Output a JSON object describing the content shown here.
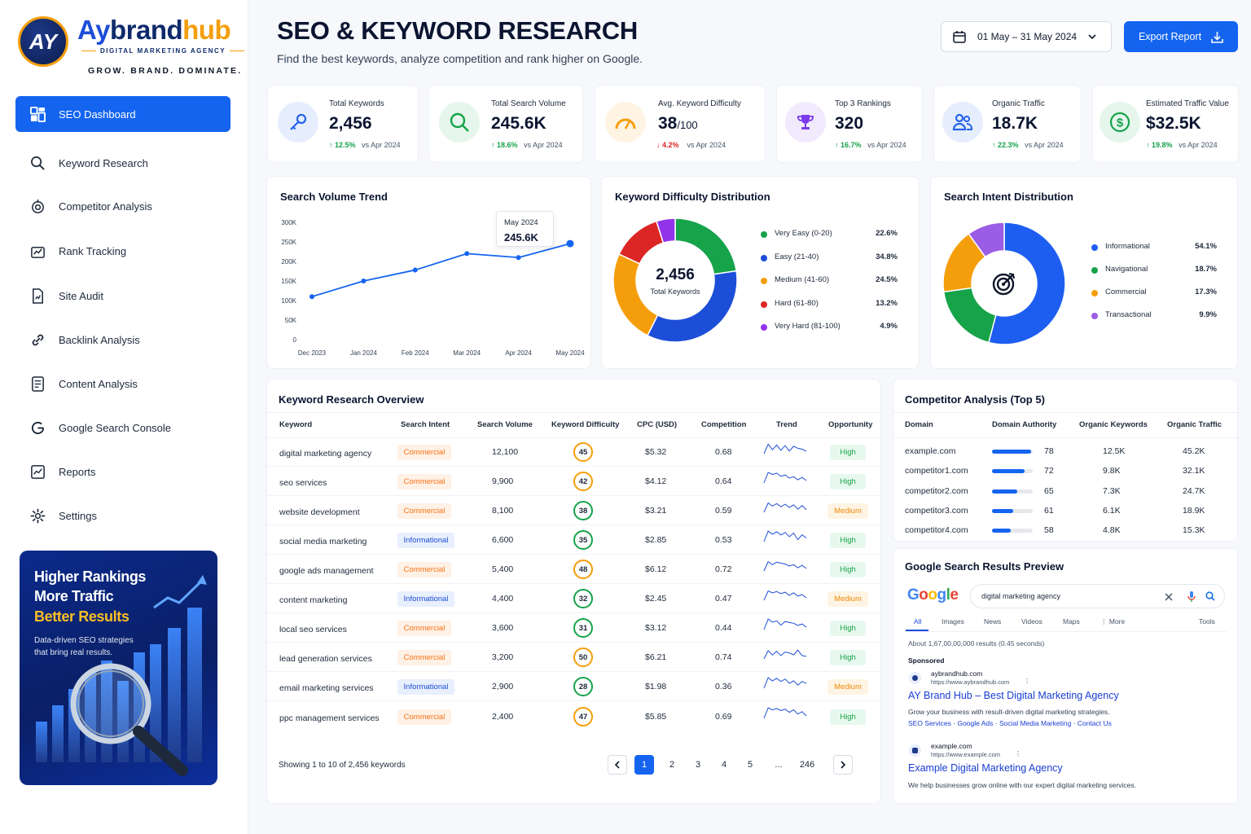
{
  "brand": {
    "initials": "AY",
    "name_part1": "Ay",
    "name_part2": "brand",
    "name_part3": "hub",
    "subtitle": "DIGITAL MARKETING AGENCY",
    "tagline": "GROW. BRAND. DOMINATE."
  },
  "sidebar": {
    "items": [
      {
        "label": "SEO Dashboard",
        "icon": "dashboard-icon"
      },
      {
        "label": "Keyword Research",
        "icon": "search-icon"
      },
      {
        "label": "Competitor Analysis",
        "icon": "target-icon"
      },
      {
        "label": "Rank Tracking",
        "icon": "rank-chart-icon"
      },
      {
        "label": "Site Audit",
        "icon": "audit-doc-icon"
      },
      {
        "label": "Backlink Analysis",
        "icon": "link-icon"
      },
      {
        "label": "Content Analysis",
        "icon": "document-icon"
      },
      {
        "label": "Google Search Console",
        "icon": "google-icon"
      },
      {
        "label": "Reports",
        "icon": "report-icon"
      },
      {
        "label": "Settings",
        "icon": "gear-icon"
      }
    ]
  },
  "promo": {
    "line1": "Higher Rankings",
    "line2": "More Traffic",
    "line3": "Better Results",
    "description": "Data-driven SEO strategies that bring real results."
  },
  "header": {
    "title": "SEO & KEYWORD RESEARCH",
    "subtitle": "Find the best keywords, analyze competition and rank higher on Google.",
    "date_range": "01 May – 31 May 2024",
    "export_label": "Export Report"
  },
  "kpis": [
    {
      "label": "Total Keywords",
      "value": "2,456",
      "suffix": "",
      "delta": "12.5%",
      "direction": "up",
      "compare": "vs Apr 2024",
      "icon": "key-icon",
      "color": "#2563eb"
    },
    {
      "label": "Total Search Volume",
      "value": "245.6K",
      "suffix": "",
      "delta": "18.6%",
      "direction": "up",
      "compare": "vs Apr 2024",
      "icon": "search-icon",
      "color": "#16a34a"
    },
    {
      "label": "Avg. Keyword Difficulty",
      "value": "38",
      "suffix": "/100",
      "delta": "4.2%",
      "direction": "down",
      "compare": "vs Apr 2024",
      "icon": "gauge-icon",
      "color": "#f59e0b"
    },
    {
      "label": "Top 3 Rankings",
      "value": "320",
      "suffix": "",
      "delta": "16.7%",
      "direction": "up",
      "compare": "vs Apr 2024",
      "icon": "trophy-icon",
      "color": "#7c3aed"
    },
    {
      "label": "Organic Traffic",
      "value": "18.7K",
      "suffix": "",
      "delta": "22.3%",
      "direction": "up",
      "compare": "vs Apr 2024",
      "icon": "users-icon",
      "color": "#2563eb"
    },
    {
      "label": "Estimated Traffic Value",
      "value": "$32.5K",
      "suffix": "",
      "delta": "19.8%",
      "direction": "up",
      "compare": "vs Apr 2024",
      "icon": "dollar-icon",
      "color": "#16a34a"
    }
  ],
  "chart_data": [
    {
      "type": "line",
      "title": "Search Volume Trend",
      "categories": [
        "Dec 2023",
        "Jan 2024",
        "Feb 2024",
        "Mar 2024",
        "Apr 2024",
        "May 2024"
      ],
      "series": [
        {
          "values": [
            110000,
            150000,
            178000,
            220000,
            210000,
            245600
          ]
        }
      ],
      "y_ticks": [
        "0",
        "50K",
        "100K",
        "150K",
        "200K",
        "250K",
        "300K"
      ],
      "ylim": [
        0,
        300000
      ],
      "color": "#1464f0",
      "tooltip": {
        "label": "May 2024",
        "value": "245.6K"
      }
    },
    {
      "type": "pie",
      "title": "Keyword Difficulty Distribution",
      "center_value": "2,456",
      "center_label": "Total Keywords",
      "slices": [
        {
          "label": "Very Easy (0-20)",
          "value": 22.6,
          "display": "22.6%",
          "color": "#16a34a"
        },
        {
          "label": "Easy (21-40)",
          "value": 34.8,
          "display": "34.8%",
          "color": "#1d4ed8"
        },
        {
          "label": "Medium (41-60)",
          "value": 24.5,
          "display": "24.5%",
          "color": "#f59e0b"
        },
        {
          "label": "Hard (61-80)",
          "value": 13.2,
          "display": "13.2%",
          "color": "#dc2626"
        },
        {
          "label": "Very Hard (81-100)",
          "value": 4.9,
          "display": "4.9%",
          "color": "#9333ea"
        }
      ]
    },
    {
      "type": "pie",
      "title": "Search Intent Distribution",
      "slices": [
        {
          "label": "Informational",
          "value": 54.1,
          "display": "54.1%",
          "color": "#1d5ef0"
        },
        {
          "label": "Navigational",
          "value": 18.7,
          "display": "18.7%",
          "color": "#16a34a"
        },
        {
          "label": "Commercial",
          "value": 17.3,
          "display": "17.3%",
          "color": "#f59e0b"
        },
        {
          "label": "Transactional",
          "value": 9.9,
          "display": "9.9%",
          "color": "#9b5de5"
        }
      ]
    }
  ],
  "keyword_table": {
    "title": "Keyword Research Overview",
    "columns": [
      "Keyword",
      "Search Intent",
      "Search Volume",
      "Keyword Difficulty",
      "CPC (USD)",
      "Competition",
      "Trend",
      "Opportunity"
    ],
    "rows": [
      {
        "keyword": "digital marketing agency",
        "intent": "Commercial",
        "volume": "12,100",
        "kd": "45",
        "kd_color": "#f59e0b",
        "cpc": "$5.32",
        "competition": "0.68",
        "opportunity": "High"
      },
      {
        "keyword": "seo services",
        "intent": "Commercial",
        "volume": "9,900",
        "kd": "42",
        "kd_color": "#f59e0b",
        "cpc": "$4.12",
        "competition": "0.64",
        "opportunity": "High"
      },
      {
        "keyword": "website development",
        "intent": "Commercial",
        "volume": "8,100",
        "kd": "38",
        "kd_color": "#16a34a",
        "cpc": "$3.21",
        "competition": "0.59",
        "opportunity": "Medium"
      },
      {
        "keyword": "social media marketing",
        "intent": "Informational",
        "volume": "6,600",
        "kd": "35",
        "kd_color": "#16a34a",
        "cpc": "$2.85",
        "competition": "0.53",
        "opportunity": "High"
      },
      {
        "keyword": "google ads management",
        "intent": "Commercial",
        "volume": "5,400",
        "kd": "48",
        "kd_color": "#f59e0b",
        "cpc": "$6.12",
        "competition": "0.72",
        "opportunity": "High"
      },
      {
        "keyword": "content marketing",
        "intent": "Informational",
        "volume": "4,400",
        "kd": "32",
        "kd_color": "#16a34a",
        "cpc": "$2.45",
        "competition": "0.47",
        "opportunity": "Medium"
      },
      {
        "keyword": "local seo services",
        "intent": "Commercial",
        "volume": "3,600",
        "kd": "31",
        "kd_color": "#16a34a",
        "cpc": "$3.12",
        "competition": "0.44",
        "opportunity": "High"
      },
      {
        "keyword": "lead generation services",
        "intent": "Commercial",
        "volume": "3,200",
        "kd": "50",
        "kd_color": "#f59e0b",
        "cpc": "$6.21",
        "competition": "0.74",
        "opportunity": "High"
      },
      {
        "keyword": "email marketing services",
        "intent": "Informational",
        "volume": "2,900",
        "kd": "28",
        "kd_color": "#16a34a",
        "cpc": "$1.98",
        "competition": "0.36",
        "opportunity": "Medium"
      },
      {
        "keyword": "ppc management services",
        "intent": "Commercial",
        "volume": "2,400",
        "kd": "47",
        "kd_color": "#f59e0b",
        "cpc": "$5.85",
        "competition": "0.69",
        "opportunity": "High"
      }
    ],
    "showing": "Showing 1 to 10 of 2,456 keywords",
    "pages": [
      "1",
      "2",
      "3",
      "4",
      "5",
      "...",
      "246"
    ]
  },
  "competitors": {
    "title": "Competitor Analysis (Top 5)",
    "columns": [
      "Domain",
      "Domain Authority",
      "Organic Keywords",
      "Organic Traffic"
    ],
    "rows": [
      {
        "domain": "example.com",
        "da": "78",
        "da_value": 78,
        "keywords": "12.5K",
        "traffic": "45.2K"
      },
      {
        "domain": "competitor1.com",
        "da": "72",
        "da_value": 72,
        "keywords": "9.8K",
        "traffic": "32.1K"
      },
      {
        "domain": "competitor2.com",
        "da": "65",
        "da_value": 65,
        "keywords": "7.3K",
        "traffic": "24.7K"
      },
      {
        "domain": "competitor3.com",
        "da": "61",
        "da_value": 61,
        "keywords": "6.1K",
        "traffic": "18.9K"
      },
      {
        "domain": "competitor4.com",
        "da": "58",
        "da_value": 58,
        "keywords": "4.8K",
        "traffic": "15.3K"
      }
    ]
  },
  "serp": {
    "title": "Google Search Results Preview",
    "logo_letters": [
      "G",
      "o",
      "o",
      "g",
      "l",
      "e"
    ],
    "logo_colors": [
      "#4285f4",
      "#ea4335",
      "#fbbc05",
      "#4285f4",
      "#34a853",
      "#ea4335"
    ],
    "query": "digital marketing agency",
    "tabs": [
      "All",
      "Images",
      "News",
      "Videos",
      "Maps",
      "⋮ More",
      "Tools"
    ],
    "stats": "About 1,67,00,00,000 results (0.45 seconds)",
    "sponsored": "Sponsored",
    "results": [
      {
        "site": "aybrandhub.com",
        "url": "https://www.aybrandhub.com",
        "title": "AY Brand Hub – Best Digital Marketing Agency",
        "snippet": "Grow your business with result-driven digital marketing strategies.",
        "sitelinks": "SEO Services · Google Ads · Social Media Marketing · Contact Us"
      },
      {
        "site": "example.com",
        "url": "https://www.example.com",
        "title": "Example Digital Marketing Agency",
        "snippet": "We help businesses grow online with our expert digital marketing services."
      }
    ]
  }
}
